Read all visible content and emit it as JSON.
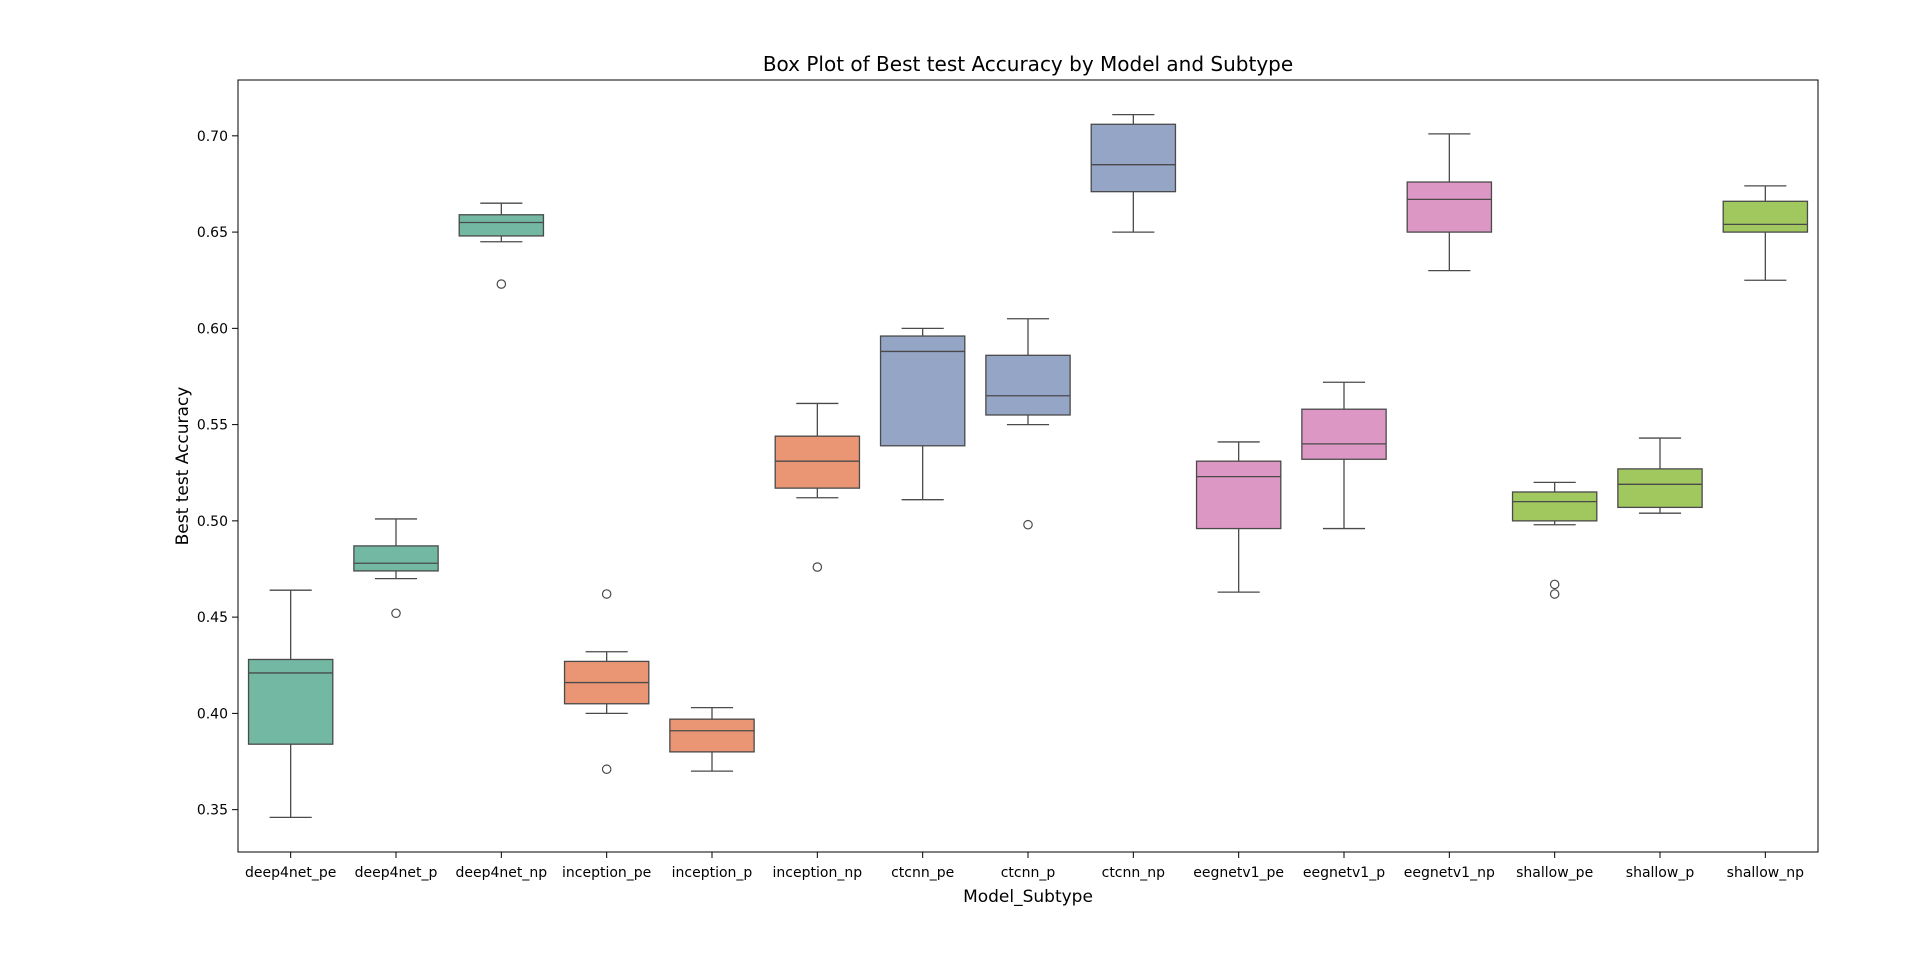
{
  "chart_data": {
    "type": "box",
    "title": "Box Plot of Best test Accuracy by Model and Subtype",
    "xlabel": "Model_Subtype",
    "ylabel": "Best test Accuracy",
    "ylim": [
      0.328,
      0.729
    ],
    "yticks": [
      0.35,
      0.4,
      0.45,
      0.5,
      0.55,
      0.6,
      0.65,
      0.7
    ],
    "ytick_labels": [
      "0.35",
      "0.40",
      "0.45",
      "0.50",
      "0.55",
      "0.60",
      "0.65",
      "0.70"
    ],
    "grid": false,
    "categories": [
      "deep4net_pe",
      "deep4net_p",
      "deep4net_np",
      "inception_pe",
      "inception_p",
      "inception_np",
      "ctcnn_pe",
      "ctcnn_p",
      "ctcnn_np",
      "eegnetv1_pe",
      "eegnetv1_p",
      "eegnetv1_np",
      "shallow_pe",
      "shallow_p",
      "shallow_np"
    ],
    "boxes": [
      {
        "category": "deep4net_pe",
        "color": "#72b8a3",
        "whisker_low": 0.346,
        "q1": 0.384,
        "median": 0.421,
        "q3": 0.428,
        "whisker_high": 0.464,
        "outliers": []
      },
      {
        "category": "deep4net_p",
        "color": "#72b8a3",
        "whisker_low": 0.47,
        "q1": 0.474,
        "median": 0.478,
        "q3": 0.487,
        "whisker_high": 0.501,
        "outliers": [
          0.452
        ]
      },
      {
        "category": "deep4net_np",
        "color": "#72b8a3",
        "whisker_low": 0.645,
        "q1": 0.648,
        "median": 0.655,
        "q3": 0.659,
        "whisker_high": 0.665,
        "outliers": [
          0.623
        ]
      },
      {
        "category": "inception_pe",
        "color": "#ea9674",
        "whisker_low": 0.4,
        "q1": 0.405,
        "median": 0.416,
        "q3": 0.427,
        "whisker_high": 0.432,
        "outliers": [
          0.462,
          0.371
        ]
      },
      {
        "category": "inception_p",
        "color": "#ea9674",
        "whisker_low": 0.37,
        "q1": 0.38,
        "median": 0.391,
        "q3": 0.397,
        "whisker_high": 0.403,
        "outliers": []
      },
      {
        "category": "inception_np",
        "color": "#ea9674",
        "whisker_low": 0.512,
        "q1": 0.517,
        "median": 0.531,
        "q3": 0.544,
        "whisker_high": 0.561,
        "outliers": [
          0.476
        ]
      },
      {
        "category": "ctcnn_pe",
        "color": "#94a5c6",
        "whisker_low": 0.511,
        "q1": 0.539,
        "median": 0.588,
        "q3": 0.596,
        "whisker_high": 0.6,
        "outliers": []
      },
      {
        "category": "ctcnn_p",
        "color": "#94a5c6",
        "whisker_low": 0.55,
        "q1": 0.555,
        "median": 0.565,
        "q3": 0.586,
        "whisker_high": 0.605,
        "outliers": [
          0.498
        ]
      },
      {
        "category": "ctcnn_np",
        "color": "#94a5c6",
        "whisker_low": 0.65,
        "q1": 0.671,
        "median": 0.685,
        "q3": 0.706,
        "whisker_high": 0.711,
        "outliers": []
      },
      {
        "category": "eegnetv1_pe",
        "color": "#dd97c4",
        "whisker_low": 0.463,
        "q1": 0.496,
        "median": 0.523,
        "q3": 0.531,
        "whisker_high": 0.541,
        "outliers": []
      },
      {
        "category": "eegnetv1_p",
        "color": "#dd97c4",
        "whisker_low": 0.496,
        "q1": 0.532,
        "median": 0.54,
        "q3": 0.558,
        "whisker_high": 0.572,
        "outliers": []
      },
      {
        "category": "eegnetv1_np",
        "color": "#dd97c4",
        "whisker_low": 0.63,
        "q1": 0.65,
        "median": 0.667,
        "q3": 0.676,
        "whisker_high": 0.701,
        "outliers": []
      },
      {
        "category": "shallow_pe",
        "color": "#a1c85f",
        "whisker_low": 0.498,
        "q1": 0.5,
        "median": 0.51,
        "q3": 0.515,
        "whisker_high": 0.52,
        "outliers": [
          0.467,
          0.462
        ]
      },
      {
        "category": "shallow_p",
        "color": "#a1c85f",
        "whisker_low": 0.504,
        "q1": 0.507,
        "median": 0.519,
        "q3": 0.527,
        "whisker_high": 0.543,
        "outliers": []
      },
      {
        "category": "shallow_np",
        "color": "#a1c85f",
        "whisker_low": 0.625,
        "q1": 0.65,
        "median": 0.654,
        "q3": 0.666,
        "whisker_high": 0.674,
        "outliers": []
      }
    ]
  }
}
